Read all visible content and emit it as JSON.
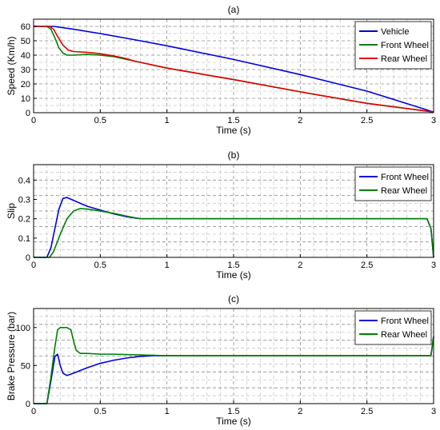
{
  "chart_data": [
    {
      "type": "line",
      "title": "(a)",
      "xlabel": "Time (s)",
      "ylabel": "Speed (Km/h)",
      "xlim": [
        0,
        3
      ],
      "ylim": [
        0,
        65
      ],
      "xticks": [
        "0",
        "0.5",
        "1",
        "1.5",
        "2",
        "2.5",
        "3"
      ],
      "yticks": [
        "0",
        "10",
        "20",
        "30",
        "40",
        "50",
        "60"
      ],
      "grid": true,
      "legend_position": "top-right",
      "series": [
        {
          "name": "Vehicle",
          "color": "#0000dd",
          "x": [
            0,
            0.15,
            0.3,
            0.5,
            0.8,
            1.0,
            1.5,
            2.0,
            2.5,
            3.0
          ],
          "y": [
            60,
            60,
            58,
            55,
            50,
            46.5,
            37,
            26.5,
            15,
            0.5
          ]
        },
        {
          "name": "Front Wheel",
          "color": "#008000",
          "x": [
            0,
            0.1,
            0.13,
            0.16,
            0.19,
            0.22,
            0.25,
            0.3,
            0.4,
            0.5,
            0.6,
            0.7,
            0.75,
            0.8,
            1.0,
            1.5,
            2.0,
            2.5,
            3.0
          ],
          "y": [
            60,
            60,
            58,
            52,
            45,
            41.5,
            40,
            40,
            40.5,
            40,
            39,
            37,
            36,
            35,
            31,
            23,
            14.5,
            6.5,
            0.5
          ]
        },
        {
          "name": "Rear Wheel",
          "color": "#e00000",
          "x": [
            0,
            0.12,
            0.15,
            0.18,
            0.22,
            0.26,
            0.3,
            0.4,
            0.5,
            0.6,
            0.7,
            0.75,
            0.8,
            1.0,
            1.5,
            2.0,
            2.5,
            3.0
          ],
          "y": [
            60,
            60,
            58,
            53,
            47,
            43.5,
            42.5,
            42,
            41,
            39.5,
            37.5,
            36,
            35,
            31,
            23,
            14.5,
            6.5,
            0.5
          ]
        }
      ]
    },
    {
      "type": "line",
      "title": "(b)",
      "xlabel": "Time (s)",
      "ylabel": "Slip",
      "xlim": [
        0,
        3
      ],
      "ylim": [
        0,
        0.48
      ],
      "xticks": [
        "0",
        "0.5",
        "1",
        "1.5",
        "2",
        "2.5",
        "3"
      ],
      "yticks": [
        "0",
        "0.1",
        "0.2",
        "0.3",
        "0.4"
      ],
      "grid": true,
      "legend_position": "top-right",
      "series": [
        {
          "name": "Front Wheel",
          "color": "#0000dd",
          "x": [
            0,
            0.1,
            0.13,
            0.16,
            0.19,
            0.22,
            0.25,
            0.3,
            0.4,
            0.5,
            0.6,
            0.7,
            0.8,
            1.0,
            2.0,
            2.95,
            2.98,
            3.0
          ],
          "y": [
            0,
            0,
            0.05,
            0.15,
            0.25,
            0.305,
            0.31,
            0.295,
            0.265,
            0.245,
            0.225,
            0.21,
            0.2,
            0.2,
            0.2,
            0.2,
            0.15,
            0
          ]
        },
        {
          "name": "Rear Wheel",
          "color": "#008000",
          "x": [
            0,
            0.12,
            0.15,
            0.2,
            0.25,
            0.3,
            0.35,
            0.4,
            0.5,
            0.6,
            0.7,
            0.8,
            1.0,
            2.0,
            2.95,
            2.98,
            3.0
          ],
          "y": [
            0,
            0,
            0.03,
            0.12,
            0.2,
            0.24,
            0.253,
            0.25,
            0.24,
            0.228,
            0.213,
            0.2,
            0.2,
            0.2,
            0.2,
            0.15,
            0
          ]
        }
      ]
    },
    {
      "type": "line",
      "title": "(c)",
      "xlabel": "Time (s)",
      "ylabel": "Brake Pressure (bar)",
      "xlim": [
        0,
        3
      ],
      "ylim": [
        0,
        125
      ],
      "xticks": [
        "0",
        "0.5",
        "1",
        "1.5",
        "2",
        "2.5",
        "3"
      ],
      "yticks": [
        "0",
        "50",
        "100"
      ],
      "grid": true,
      "legend_position": "top-right",
      "series": [
        {
          "name": "Front Wheel",
          "color": "#0000dd",
          "x": [
            0,
            0.1,
            0.13,
            0.16,
            0.18,
            0.2,
            0.22,
            0.25,
            0.3,
            0.4,
            0.5,
            0.6,
            0.7,
            0.8,
            0.9,
            1.0,
            2.0,
            2.98,
            3.0
          ],
          "y": [
            0,
            0,
            30,
            62,
            65,
            50,
            40,
            37,
            40,
            47,
            53,
            57,
            60,
            62,
            63,
            63,
            63,
            63,
            88
          ]
        },
        {
          "name": "Rear Wheel",
          "color": "#008000",
          "x": [
            0,
            0.1,
            0.13,
            0.16,
            0.18,
            0.2,
            0.25,
            0.28,
            0.3,
            0.32,
            0.35,
            0.4,
            0.5,
            0.6,
            0.8,
            1.0,
            2.0,
            2.98,
            3.0
          ],
          "y": [
            0,
            0,
            35,
            75,
            97,
            100,
            100,
            97,
            82,
            70,
            66,
            66,
            65,
            65,
            64,
            63,
            63,
            63,
            88
          ]
        }
      ]
    }
  ]
}
